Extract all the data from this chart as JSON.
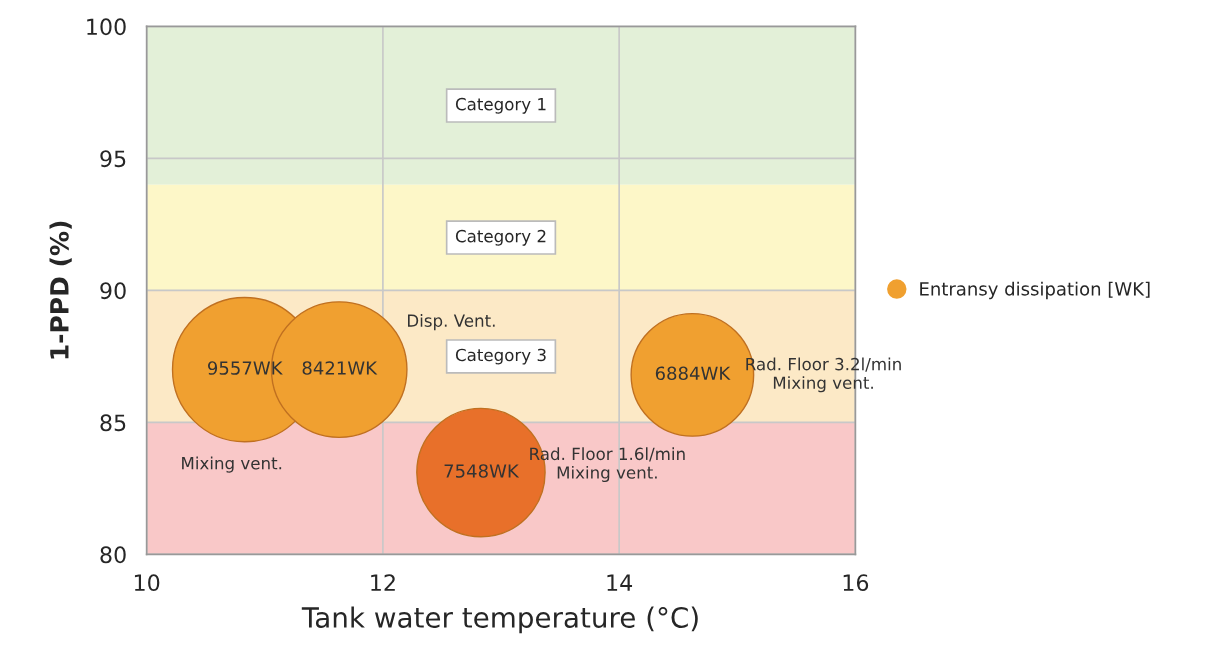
{
  "chart_data": {
    "type": "bubble",
    "xlabel": "Tank water temperature (°C)",
    "ylabel": "1-PPD (%)",
    "x": [
      10.83,
      11.63,
      12.83,
      14.62
    ],
    "series": [
      {
        "name": "Entransy dissipation [WK]",
        "color": "#f0a030",
        "colors": [
          "#f0a030",
          "#f0a030",
          "#e8702a",
          "#f0a030"
        ],
        "values": [
          87.0,
          87.0,
          83.1,
          86.8
        ],
        "sizes": [
          9557,
          8421,
          7548,
          6884
        ],
        "value_labels": [
          "9557WK",
          "8421WK",
          "7548WK",
          "6884WK"
        ]
      }
    ],
    "xlim": [
      10,
      16
    ],
    "xticks": [
      10,
      12,
      14,
      16
    ],
    "ylim": [
      80,
      100
    ],
    "yticks": [
      80,
      85,
      90,
      95,
      100
    ],
    "bands": [
      {
        "axis": "y",
        "from": 94,
        "to": 100,
        "label": "Category 1",
        "color": "#e3f0d8"
      },
      {
        "axis": "y",
        "from": 90,
        "to": 94,
        "label": "Category 2",
        "color": "#fdf7c8"
      },
      {
        "axis": "y",
        "from": 85,
        "to": 90,
        "label": "Category 3",
        "color": "#fce9c6"
      },
      {
        "axis": "y",
        "from": 80,
        "to": 85,
        "label": null,
        "color": "#f9c8c8"
      }
    ],
    "annotations": [
      "Disp. Vent.",
      "Mixing vent.",
      "Rad. Floor 1.6l/min\nMixing vent.",
      "Rad. Floor 3.2l/min\nMixing vent."
    ],
    "grid": true,
    "legend": "right"
  }
}
